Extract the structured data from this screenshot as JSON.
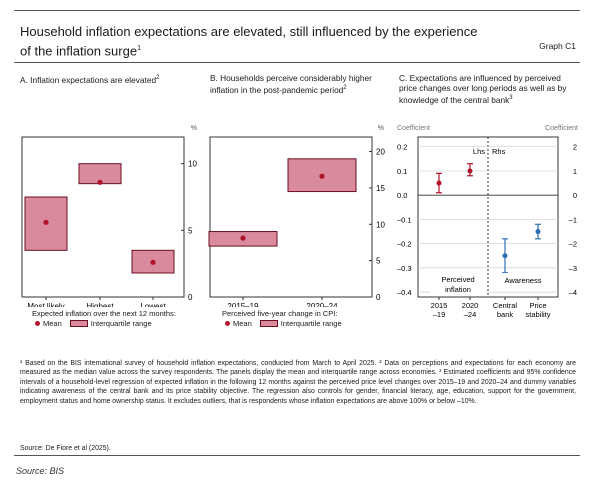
{
  "header": {
    "title": "Household inflation expectations are elevated, still influenced by the experience of the inflation surge",
    "title_sup": "1",
    "graph_label": "Graph C1"
  },
  "panels": {
    "a": {
      "title": "A. Inflation expectations are elevated",
      "sup": "2",
      "unit": "%"
    },
    "b": {
      "title": "B. Households perceive considerably higher inflation in the post-pandemic period",
      "sup": "2",
      "unit": "%"
    },
    "c": {
      "title": "C. Expectations are influenced by perceived price changes over long periods as well as by knowledge of the central bank",
      "sup": "3",
      "left_axis_label": "Coefficient",
      "right_axis_label": "Coefficient",
      "lhs_label": "Lhs",
      "rhs_label": "Rhs",
      "group1_label": "Perceived inflation",
      "group2_label": "Awareness"
    }
  },
  "legends": {
    "a": {
      "caption": "Expected inflation over the next 12 months:",
      "mean": "Mean",
      "iqr": "Interquartile range"
    },
    "b": {
      "caption": "Perceived five-year change in CPI:",
      "mean": "Mean",
      "iqr": "Interquartile range"
    }
  },
  "footnotes": "¹ Based on the BIS international survey of household inflation expectations, conducted from March to April 2025. ² Data on perceptions and expectations for each economy are measured as the median value across the survey respondents. The panels display the mean and interquartile range across economies. ³ Estimated coefficients and 95% confidence intervals of a household-level regression of expected inflation in the following 12 months against the perceived price level changes over 2015–19 and 2020–24 and dummy variables indicating awareness of the central bank and its price stability objective. The regression also controls for gender, financial literacy, age, education, support for the government, employment status and home ownership status. It excludes outliers, that is respondents whose inflation expectations are above 100% or below –10%.",
  "source_inner": "Source: De Fiore et al (2025).",
  "source_outer": "Source: BIS",
  "colors": {
    "box_fill": "#d98a9c",
    "box_stroke": "#6b0f1e",
    "mean": "#b0142a",
    "coef_red": "#b0142a",
    "coef_blue": "#2f6fb5"
  },
  "chart_data": [
    {
      "type": "box",
      "panel": "A",
      "categories": [
        "Most likely",
        "Highest",
        "Lowest"
      ],
      "iqr": [
        [
          3.5,
          7.5
        ],
        [
          8.5,
          10.0
        ],
        [
          1.8,
          3.5
        ]
      ],
      "mean": [
        5.6,
        8.6,
        2.6
      ],
      "ylim": [
        0,
        12
      ],
      "yticks": [
        0,
        5,
        10
      ],
      "ylabel": "%"
    },
    {
      "type": "box",
      "panel": "B",
      "categories": [
        "2015–19",
        "2020–24"
      ],
      "iqr": [
        [
          7.0,
          9.0
        ],
        [
          14.5,
          19.0
        ]
      ],
      "mean": [
        8.1,
        16.6
      ],
      "ylim": [
        0,
        22
      ],
      "yticks": [
        0,
        5,
        10,
        15,
        20
      ],
      "ylabel": "%"
    },
    {
      "type": "errorbar",
      "panel": "C",
      "categories": [
        "2015 –19",
        "2020 –24",
        "Central bank",
        "Price stability"
      ],
      "groups": [
        "Perceived inflation",
        "Perceived inflation",
        "Awareness",
        "Awareness"
      ],
      "axis": [
        "lhs",
        "lhs",
        "rhs",
        "rhs"
      ],
      "coef": [
        0.05,
        0.1,
        -2.5,
        -1.5
      ],
      "ci": [
        [
          0.01,
          0.09
        ],
        [
          0.08,
          0.13
        ],
        [
          -3.2,
          -1.8
        ],
        [
          -1.8,
          -1.2
        ]
      ],
      "ylim_lhs": [
        -0.42,
        0.24
      ],
      "yticks_lhs": [
        0.2,
        0.1,
        0.0,
        -0.1,
        -0.2,
        -0.3,
        -0.4
      ],
      "ytick_labels_lhs": [
        "0.2",
        "0.1",
        "0.0",
        "–0.1",
        "–0.2",
        "–0.3",
        "–0.4"
      ],
      "ylim_rhs": [
        -4.2,
        2.4
      ],
      "yticks_rhs": [
        2,
        1,
        0,
        -1,
        -2,
        -3,
        -4
      ],
      "ytick_labels_rhs": [
        "2",
        "1",
        "0",
        "–1",
        "–2",
        "–3",
        "–4"
      ]
    }
  ]
}
